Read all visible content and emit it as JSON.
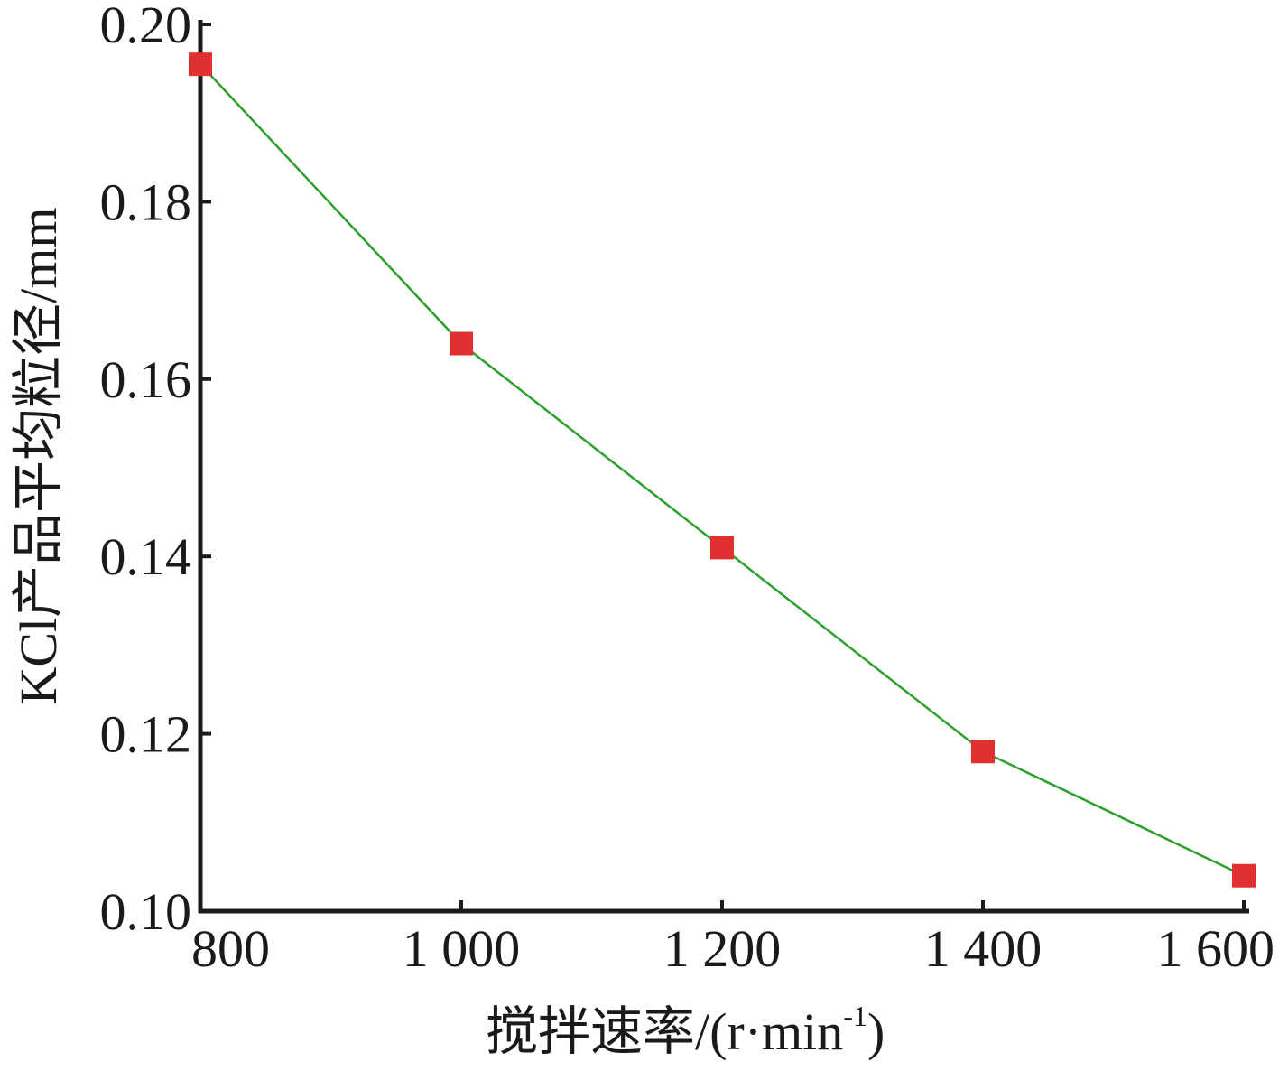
{
  "chart_data": {
    "type": "line",
    "title": "",
    "xlabel": "搅拌速率/(r·min",
    "xlabel_sup": "-1",
    "xlabel_tail": ")",
    "ylabel": "KCl产品平均粒径/mm",
    "xlim": [
      800,
      1600
    ],
    "ylim": [
      0.1,
      0.2
    ],
    "x_ticks": [
      800,
      1000,
      1200,
      1400,
      1600
    ],
    "x_tick_labels": [
      "800",
      "1 000",
      "1 200",
      "1 400",
      "1 600"
    ],
    "y_ticks": [
      0.1,
      0.12,
      0.14,
      0.16,
      0.18,
      0.2
    ],
    "y_tick_labels": [
      "0.10",
      "0.12",
      "0.14",
      "0.16",
      "0.18",
      "0.20"
    ],
    "grid": false,
    "legend": "none",
    "series": [
      {
        "x": [
          800,
          1000,
          1200,
          1400,
          1600
        ],
        "y": [
          0.1955,
          0.164,
          0.141,
          0.118,
          0.104
        ],
        "line_color": "#2ca02c",
        "marker": "square",
        "marker_color": "#e03030"
      }
    ]
  }
}
